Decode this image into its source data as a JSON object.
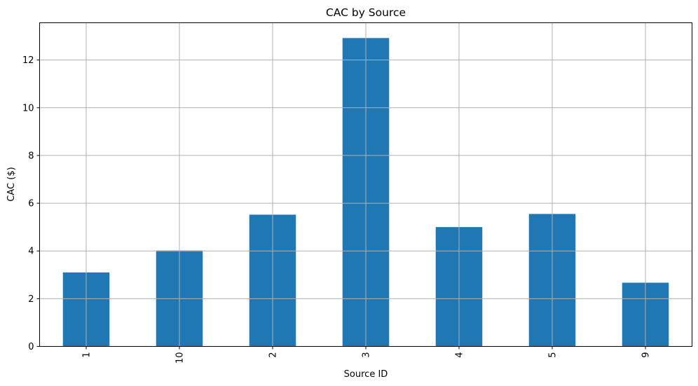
{
  "chart_data": {
    "type": "bar",
    "title": "CAC by Source",
    "xlabel": "Source ID",
    "ylabel": "CAC ($)",
    "categories": [
      "1",
      "10",
      "2",
      "3",
      "4",
      "5",
      "9"
    ],
    "values": [
      3.1,
      4.02,
      5.52,
      12.92,
      5.0,
      5.55,
      2.67
    ],
    "ylim": [
      0,
      13.56
    ],
    "yticks": [
      "0",
      "2",
      "4",
      "6",
      "8",
      "10",
      "12"
    ],
    "grid": true,
    "bar_color": "#1f77b4",
    "xtick_rotation": 90
  }
}
